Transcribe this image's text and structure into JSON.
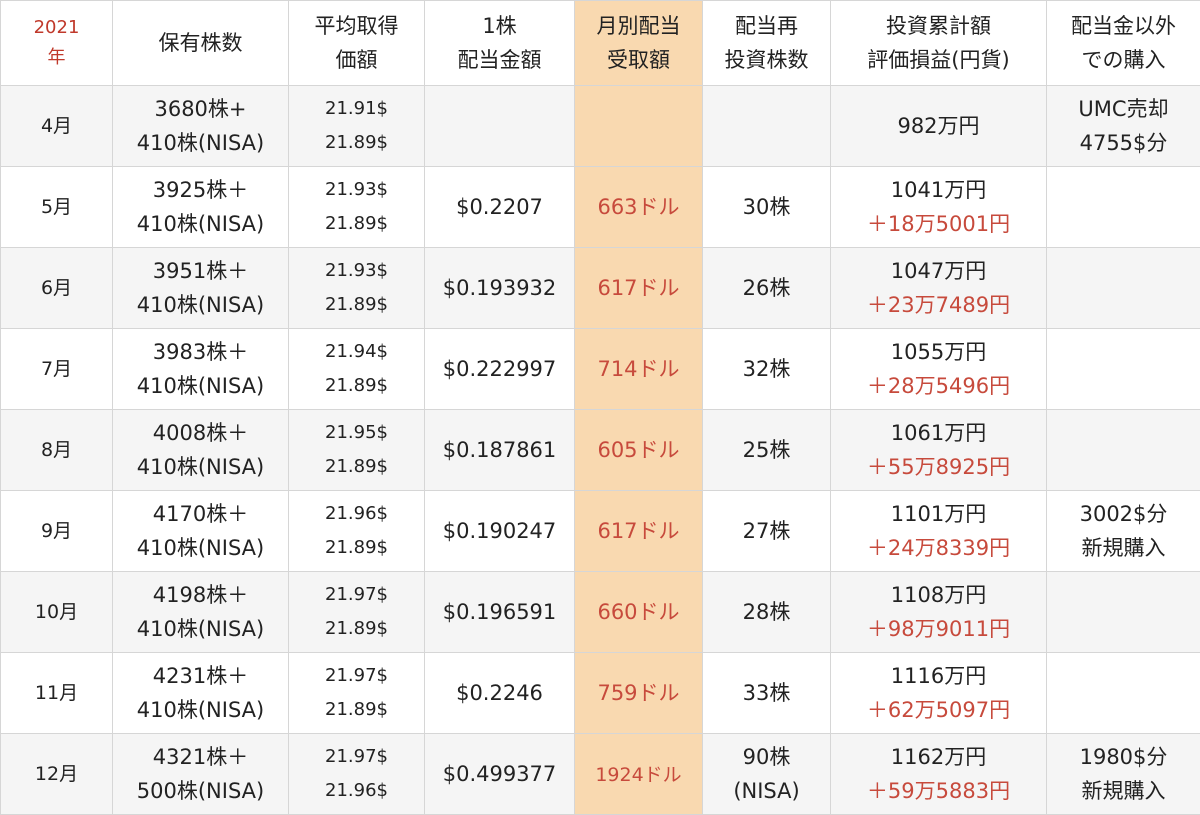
{
  "header": {
    "year_line1": "2021",
    "year_line2": "年",
    "col_holdings": "保有株数",
    "col_avg_line1": "平均取得",
    "col_avg_line2": "価額",
    "col_per_share_line1": "1株",
    "col_per_share_line2": "配当金額",
    "col_monthly_line1": "月別配当",
    "col_monthly_line2": "受取額",
    "col_reinvest_line1": "配当再",
    "col_reinvest_line2": "投資株数",
    "col_total_line1": "投資累計額",
    "col_total_line2": "評価損益(円貨)",
    "col_other_line1": "配当金以外",
    "col_other_line2": "での購入"
  },
  "rows": [
    {
      "month": "4月",
      "holdings1": "3680株+",
      "holdings2": "410株(NISA)",
      "avg1": "21.91$",
      "avg2": "21.89$",
      "per_share": "",
      "monthly": "",
      "reinvest": "",
      "total": "982万円",
      "gain": "",
      "other1": "UMC売却",
      "other2": "4755$分"
    },
    {
      "month": "5月",
      "holdings1": "3925株＋",
      "holdings2": "410株(NISA)",
      "avg1": "21.93$",
      "avg2": "21.89$",
      "per_share": "$0.2207",
      "monthly": "663ドル",
      "reinvest": "30株",
      "total": "1041万円",
      "gain": "＋18万5001円",
      "other1": "",
      "other2": ""
    },
    {
      "month": "6月",
      "holdings1": "3951株＋",
      "holdings2": "410株(NISA)",
      "avg1": "21.93$",
      "avg2": "21.89$",
      "per_share": "$0.193932",
      "monthly": "617ドル",
      "reinvest": "26株",
      "total": "1047万円",
      "gain": "＋23万7489円",
      "other1": "",
      "other2": ""
    },
    {
      "month": "7月",
      "holdings1": "3983株＋",
      "holdings2": "410株(NISA)",
      "avg1": "21.94$",
      "avg2": "21.89$",
      "per_share": "$0.222997",
      "monthly": "714ドル",
      "reinvest": "32株",
      "total": "1055万円",
      "gain": "＋28万5496円",
      "other1": "",
      "other2": ""
    },
    {
      "month": "8月",
      "holdings1": "4008株＋",
      "holdings2": "410株(NISA)",
      "avg1": "21.95$",
      "avg2": "21.89$",
      "per_share": "$0.187861",
      "monthly": "605ドル",
      "reinvest": "25株",
      "total": "1061万円",
      "gain": "＋55万8925円",
      "other1": "",
      "other2": ""
    },
    {
      "month": "9月",
      "holdings1": "4170株＋",
      "holdings2": "410株(NISA)",
      "avg1": "21.96$",
      "avg2": "21.89$",
      "per_share": "$0.190247",
      "monthly": "617ドル",
      "reinvest": "27株",
      "total": "1101万円",
      "gain": "＋24万8339円",
      "other1": "3002$分",
      "other2": "新規購入"
    },
    {
      "month": "10月",
      "holdings1": "4198株＋",
      "holdings2": "410株(NISA)",
      "avg1": "21.97$",
      "avg2": "21.89$",
      "per_share": "$0.196591",
      "monthly": "660ドル",
      "reinvest": "28株",
      "total": "1108万円",
      "gain": "＋98万9011円",
      "other1": "",
      "other2": ""
    },
    {
      "month": "11月",
      "holdings1": "4231株＋",
      "holdings2": "410株(NISA)",
      "avg1": "21.97$",
      "avg2": "21.89$",
      "per_share": "$0.2246",
      "monthly": "759ドル",
      "reinvest": "33株",
      "total": "1116万円",
      "gain": "＋62万5097円",
      "other1": "",
      "other2": ""
    },
    {
      "month": "12月",
      "holdings1": "4321株＋",
      "holdings2": "500株(NISA)",
      "avg1": "21.97$",
      "avg2": "21.96$",
      "per_share": "$0.499377",
      "monthly": "1924ドル",
      "reinvest": "90株",
      "reinvest2": "(NISA)",
      "total": "1162万円",
      "gain": "＋59万5883円",
      "other1": "1980$分",
      "other2": "新規購入"
    }
  ],
  "colors": {
    "accent_red": "#c74a3c",
    "highlight_column": "#f9d9b0",
    "stripe": "#f5f5f5"
  }
}
